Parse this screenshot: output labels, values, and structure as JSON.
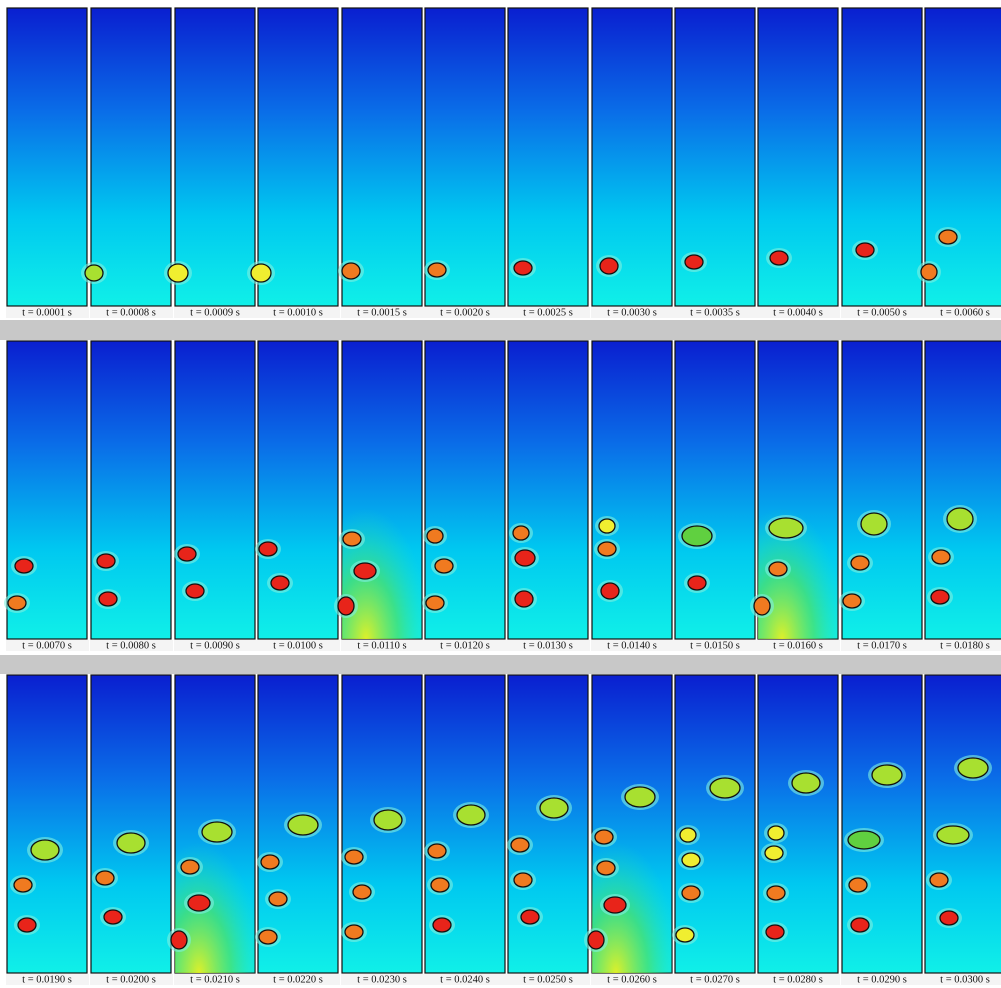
{
  "rows": [
    [
      "t = 0.0001 s",
      "t = 0.0008 s",
      "t = 0.0009 s",
      "t = 0.0010 s",
      "t = 0.0015 s",
      "t = 0.0020 s",
      "t = 0.0025 s",
      "t = 0.0030 s",
      "t = 0.0035 s",
      "t = 0.0040 s",
      "t = 0.0050 s",
      "t = 0.0060 s"
    ],
    [
      "t = 0.0070 s",
      "t = 0.0080 s",
      "t = 0.0090 s",
      "t = 0.0100 s",
      "t = 0.0110 s",
      "t = 0.0120 s",
      "t = 0.0130 s",
      "t = 0.0140 s",
      "t = 0.0150 s",
      "t = 0.0160 s",
      "t = 0.0170 s",
      "t = 0.0180 s"
    ],
    [
      "t = 0.0190 s",
      "t = 0.0200 s",
      "t = 0.0210 s",
      "t = 0.0220 s",
      "t = 0.0230 s",
      "t = 0.0240 s",
      "t = 0.0250 s",
      "t = 0.0260 s",
      "t = 0.0270 s",
      "t = 0.0280 s",
      "t = 0.0290 s",
      "t = 0.0300 s"
    ]
  ]
}
